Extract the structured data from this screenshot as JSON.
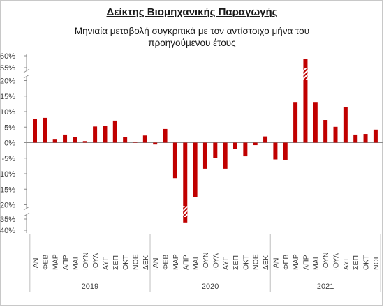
{
  "title": "Δείκτης Βιομηχανικής Παραγωγής",
  "subtitle": "Μηνιαία μεταβολή συγκριτικά με τον αντίστοιχο μήνα του προηγούμενου έτους",
  "chart_data": {
    "type": "bar",
    "y_tick_labels": [
      "60%",
      "55%",
      "20%",
      "15%",
      "10%",
      "5%",
      "0%",
      "-5%",
      "-10%",
      "-15%",
      "-20%",
      "-35%",
      "-40%"
    ],
    "axis_breaks": [
      "20% to 55%",
      "-20% to -35%"
    ],
    "grid": false,
    "legend": "none",
    "bar_color": "#c00000",
    "categories": [
      "ΙΑΝ",
      "ΦΕΒ",
      "ΜΑΡ",
      "ΑΠΡ",
      "ΜΑΙ",
      "ΙΟΥΝ",
      "ΙΟΥΛ",
      "ΑΥΓ",
      "ΣΕΠ",
      "ΟΚΤ",
      "ΝΟΕ",
      "ΔΕΚ",
      "ΙΑΝ",
      "ΦΕΒ",
      "ΜΑΡ",
      "ΑΠΡ",
      "ΜΑΙ",
      "ΙΟΥΝ",
      "ΙΟΥΛ",
      "ΑΥΓ",
      "ΣΕΠ",
      "ΟΚΤ",
      "ΝΟΕ",
      "ΔΕΚ",
      "ΙΑΝ",
      "ΦΕΒ",
      "ΜΑΡ",
      "ΑΠΡ",
      "ΜΑΙ",
      "ΙΟΥΝ",
      "ΙΟΥΛ",
      "ΑΥΓ",
      "ΣΕΠ",
      "ΟΚΤ",
      "ΝΟΕ"
    ],
    "years": [
      {
        "label": "2019",
        "count": 12
      },
      {
        "label": "2020",
        "count": 12
      },
      {
        "label": "2021",
        "count": 11
      }
    ],
    "values": [
      7.6,
      8.0,
      1.2,
      2.6,
      1.8,
      0.5,
      5.2,
      5.4,
      7.1,
      1.8,
      0.2,
      2.3,
      -0.6,
      4.4,
      -11.4,
      -36.5,
      -17.5,
      -8.4,
      -4.9,
      -8.4,
      -2.0,
      -4.4,
      -0.8,
      2.0,
      -5.4,
      -5.5,
      13.1,
      58.7,
      13.1,
      7.3,
      5.1,
      11.5,
      2.6,
      2.8,
      4.2
    ]
  }
}
